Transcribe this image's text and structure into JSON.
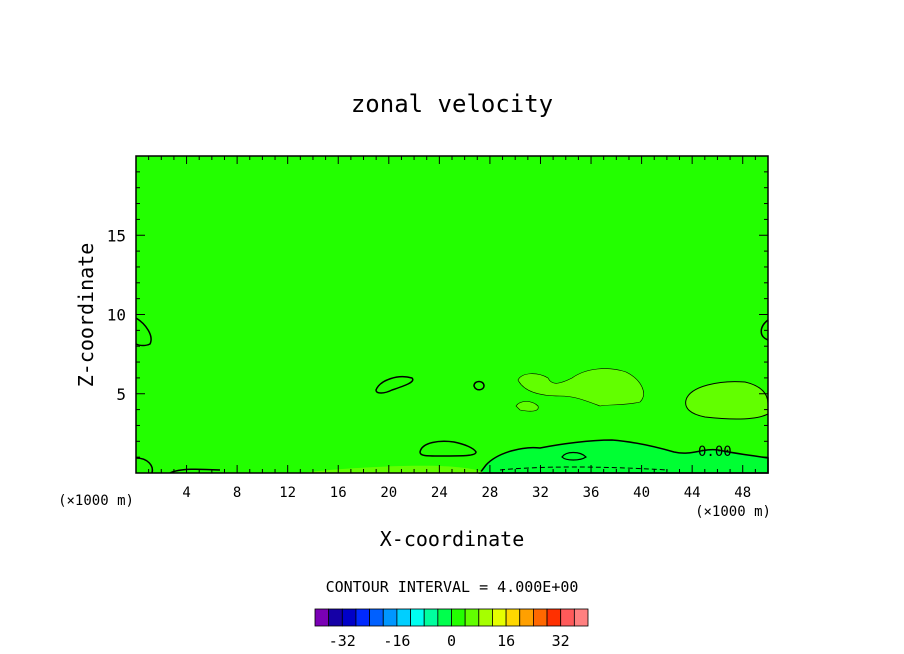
{
  "chart_data": {
    "type": "heatmap",
    "title": "zonal velocity",
    "xlabel": "X-coordinate",
    "ylabel": "Z-coordinate",
    "x_unit": "(×1000 m)",
    "x_unit_right": "(×1000 m)",
    "xlim": [
      0,
      50
    ],
    "ylim": [
      0,
      20
    ],
    "x_ticks": [
      4,
      8,
      12,
      16,
      20,
      24,
      28,
      32,
      36,
      40,
      44,
      48
    ],
    "y_ticks": [
      5,
      10,
      15
    ],
    "contour_label": "0.00",
    "contour_interval_text": "CONTOUR INTERVAL = 4.000E+00",
    "background_color": "#23ff00",
    "positive_region_color": "#62ff00",
    "negative_region_color": "#00ff33",
    "colorbar": {
      "colors": [
        "#7a00b5",
        "#1500a6",
        "#0000c8",
        "#0029ff",
        "#0060ff",
        "#0097ff",
        "#00cfff",
        "#00fff0",
        "#00ff9e",
        "#00ff4d",
        "#23ff00",
        "#62ff00",
        "#a6ff00",
        "#e6ff00",
        "#ffd800",
        "#ffa000",
        "#ff6800",
        "#ff3000",
        "#ff5a5a",
        "#ff8080"
      ],
      "tick_labels": [
        "-32",
        "-16",
        "0",
        "16",
        "32"
      ],
      "tick_values": [
        -32,
        -16,
        0,
        16,
        32
      ],
      "range": [
        -40,
        40
      ]
    }
  }
}
